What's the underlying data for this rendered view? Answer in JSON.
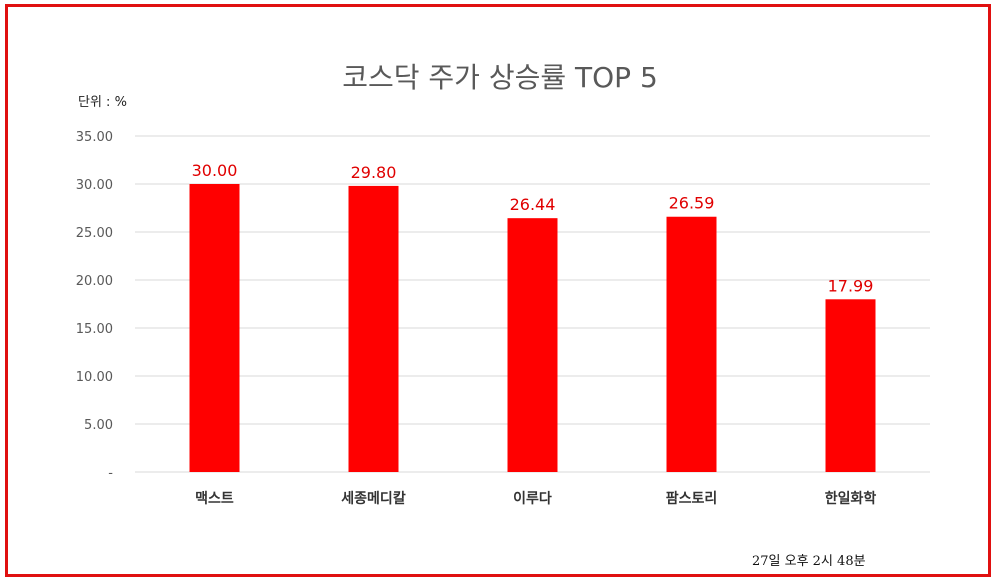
{
  "colors": {
    "frame": "#e01010",
    "bar": "#ff0000",
    "data_label": "#e00000",
    "grid": "#d9d9d9"
  },
  "chart_data": {
    "type": "bar",
    "title": "코스닥 주가 상승률 TOP 5",
    "unit_label": "단위 : %",
    "categories": [
      "맥스트",
      "세종메디칼",
      "이루다",
      "팜스토리",
      "한일화학"
    ],
    "values": [
      30.0,
      29.8,
      26.44,
      26.59,
      17.99
    ],
    "data_labels": [
      "30.00",
      "29.80",
      "26.44",
      "26.59",
      "17.99"
    ],
    "ylim": [
      0,
      35
    ],
    "yticks": [
      0,
      5,
      10,
      15,
      20,
      25,
      30,
      35
    ],
    "ytick_labels": [
      "-",
      "5.00",
      "10.00",
      "15.00",
      "20.00",
      "25.00",
      "30.00",
      "35.00"
    ],
    "grid": true,
    "legend": "none"
  },
  "footer": {
    "timestamp": "27일  오후 2시 48분"
  }
}
